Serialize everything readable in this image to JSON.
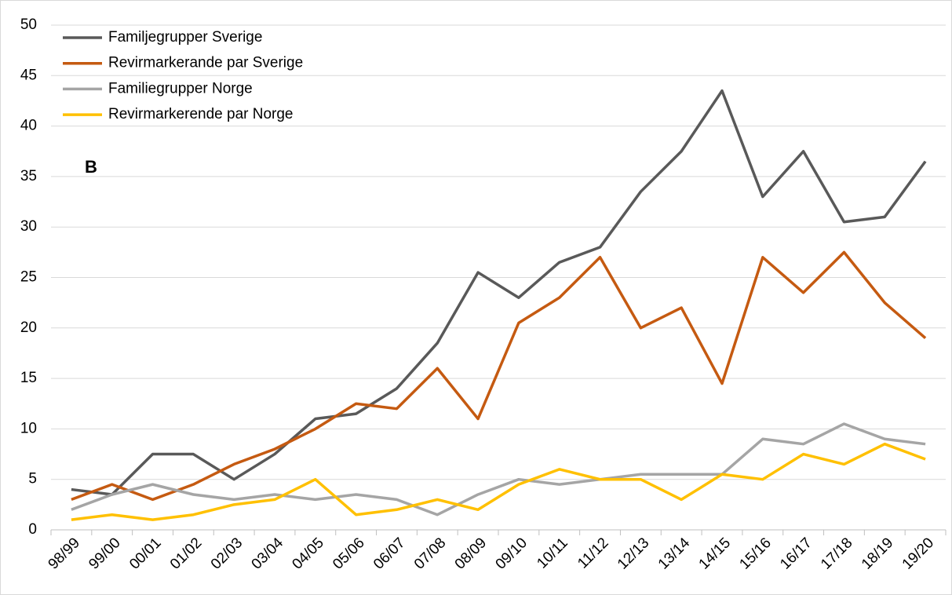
{
  "chart_data": {
    "type": "line",
    "annotation": "B",
    "categories": [
      "98/99",
      "99/00",
      "00/01",
      "01/02",
      "02/03",
      "03/04",
      "04/05",
      "05/06",
      "06/07",
      "07/08",
      "08/09",
      "09/10",
      "10/11",
      "11/12",
      "12/13",
      "13/14",
      "14/15",
      "15/16",
      "16/17",
      "17/18",
      "18/19",
      "19/20"
    ],
    "series": [
      {
        "name": "Familjegrupper Sverige",
        "color": "#595959",
        "values": [
          4,
          3.5,
          7.5,
          7.5,
          5,
          7.5,
          11,
          11.5,
          14,
          18.5,
          25.5,
          23,
          26.5,
          28,
          33.5,
          37.5,
          43.5,
          33,
          37.5,
          30.5,
          31,
          36.5
        ]
      },
      {
        "name": "Revirmarkerande par Sverige",
        "color": "#c55a11",
        "values": [
          3,
          4.5,
          3,
          4.5,
          6.5,
          8,
          10,
          12.5,
          12,
          16,
          11,
          20.5,
          23,
          27,
          20,
          22,
          14.5,
          27,
          23.5,
          27.5,
          22.5,
          19
        ]
      },
      {
        "name": "Familiegrupper Norge",
        "color": "#a5a5a5",
        "values": [
          2,
          3.5,
          4.5,
          3.5,
          3,
          3.5,
          3,
          3.5,
          3,
          1.5,
          3.5,
          5,
          4.5,
          5,
          5.5,
          5.5,
          5.5,
          9,
          8.5,
          10.5,
          9,
          8.5
        ]
      },
      {
        "name": "Revirmarkerende par Norge",
        "color": "#ffc000",
        "values": [
          1,
          1.5,
          1,
          1.5,
          2.5,
          3,
          5,
          1.5,
          2,
          3,
          2,
          4.5,
          6,
          5,
          5,
          3,
          5.5,
          5,
          7.5,
          6.5,
          8.5,
          7
        ]
      }
    ],
    "ylim": [
      0,
      50
    ],
    "yticks": [
      0,
      5,
      10,
      15,
      20,
      25,
      30,
      35,
      40,
      45,
      50
    ],
    "grid": true,
    "legend": "top-left"
  }
}
